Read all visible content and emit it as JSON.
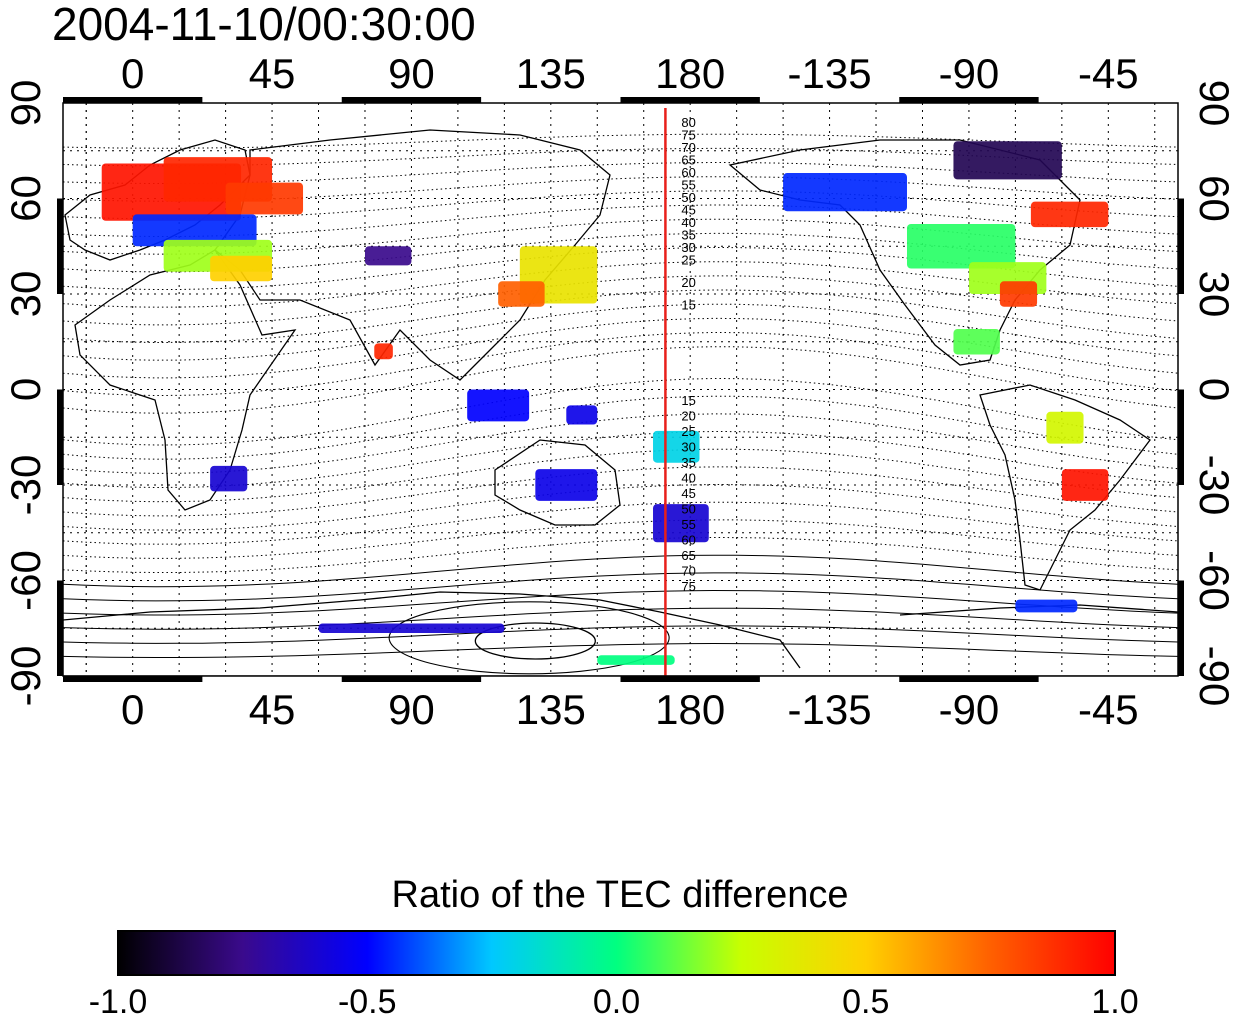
{
  "title": "2004-11-10/00:30:00",
  "map": {
    "longitude_ticks": [
      "0",
      "45",
      "90",
      "135",
      "180",
      "-135",
      "-90",
      "-45"
    ],
    "latitude_ticks": [
      "90",
      "60",
      "30",
      "0",
      "-30",
      "-60",
      "-90"
    ],
    "meridian_longitude": 172,
    "meridian_color": "#e8201b",
    "contour_labels_north": [
      "80",
      "75",
      "70",
      "65",
      "60",
      "55",
      "50",
      "45",
      "40",
      "35",
      "30",
      "25",
      "20",
      "15"
    ],
    "contour_labels_south": [
      "15",
      "20",
      "25",
      "30",
      "35",
      "40",
      "45",
      "50",
      "55",
      "60",
      "65",
      "70",
      "75"
    ]
  },
  "colorbar": {
    "title": "Ratio of the TEC difference",
    "labels": [
      "-1.0",
      "-0.5",
      "0.0",
      "0.5",
      "1.0"
    ],
    "range": [
      -1.0,
      1.0
    ],
    "colors": [
      "#000000",
      "#3a0a8c",
      "#0000ff",
      "#00c8ff",
      "#00ff80",
      "#c8ff00",
      "#ffd000",
      "#ff6000",
      "#ff0000"
    ]
  },
  "patches": [
    {
      "lon": -10,
      "lat": 62,
      "w": 45,
      "h": 18,
      "v": 0.95
    },
    {
      "lon": 10,
      "lat": 66,
      "w": 35,
      "h": 14,
      "v": 0.9
    },
    {
      "lon": 30,
      "lat": 60,
      "w": 25,
      "h": 10,
      "v": 0.85
    },
    {
      "lon": 0,
      "lat": 50,
      "w": 40,
      "h": 10,
      "v": -0.45
    },
    {
      "lon": 10,
      "lat": 42,
      "w": 35,
      "h": 10,
      "v": 0.2
    },
    {
      "lon": 25,
      "lat": 38,
      "w": 20,
      "h": 8,
      "v": 0.5
    },
    {
      "lon": 75,
      "lat": 42,
      "w": 15,
      "h": 6,
      "v": -0.75
    },
    {
      "lon": 125,
      "lat": 36,
      "w": 25,
      "h": 18,
      "v": 0.4
    },
    {
      "lon": 118,
      "lat": 30,
      "w": 15,
      "h": 8,
      "v": 0.75
    },
    {
      "lon": 78,
      "lat": 12,
      "w": 6,
      "h": 5,
      "v": 0.9
    },
    {
      "lon": 108,
      "lat": -5,
      "w": 20,
      "h": 10,
      "v": -0.5
    },
    {
      "lon": 140,
      "lat": -8,
      "w": 10,
      "h": 6,
      "v": -0.55
    },
    {
      "lon": 130,
      "lat": -30,
      "w": 20,
      "h": 10,
      "v": -0.55
    },
    {
      "lon": 168,
      "lat": -42,
      "w": 18,
      "h": 12,
      "v": -0.6
    },
    {
      "lon": 168,
      "lat": -18,
      "w": 15,
      "h": 10,
      "v": -0.2
    },
    {
      "lon": 25,
      "lat": -28,
      "w": 12,
      "h": 8,
      "v": -0.6
    },
    {
      "lon": -150,
      "lat": 62,
      "w": 40,
      "h": 12,
      "v": -0.45
    },
    {
      "lon": -110,
      "lat": 45,
      "w": 35,
      "h": 14,
      "v": 0.05
    },
    {
      "lon": -90,
      "lat": 35,
      "w": 25,
      "h": 10,
      "v": 0.2
    },
    {
      "lon": -80,
      "lat": 30,
      "w": 12,
      "h": 8,
      "v": 0.85
    },
    {
      "lon": -95,
      "lat": 72,
      "w": 35,
      "h": 12,
      "v": -0.85
    },
    {
      "lon": -70,
      "lat": 55,
      "w": 25,
      "h": 8,
      "v": 0.9
    },
    {
      "lon": -95,
      "lat": 15,
      "w": 15,
      "h": 8,
      "v": 0.1
    },
    {
      "lon": -60,
      "lat": -30,
      "w": 15,
      "h": 10,
      "v": 0.95
    },
    {
      "lon": -65,
      "lat": -12,
      "w": 12,
      "h": 10,
      "v": 0.3
    },
    {
      "lon": -75,
      "lat": -68,
      "w": 20,
      "h": 4,
      "v": -0.45
    },
    {
      "lon": 60,
      "lat": -75,
      "w": 60,
      "h": 3,
      "v": -0.6
    },
    {
      "lon": 150,
      "lat": -85,
      "w": 25,
      "h": 3,
      "v": 0.0
    }
  ]
}
